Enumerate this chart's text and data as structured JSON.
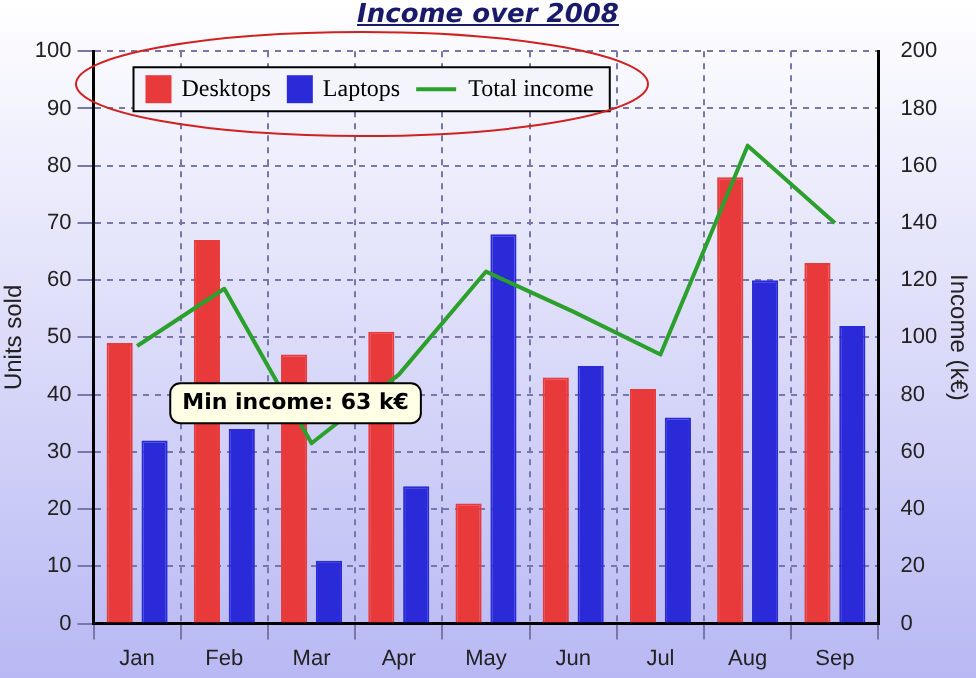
{
  "chart_data": {
    "type": "bar",
    "title": "Income over 2008",
    "ylabel": "Units sold",
    "y2label": "Income (k€)",
    "categories": [
      "Jan",
      "Feb",
      "Mar",
      "Apr",
      "May",
      "Jun",
      "Jul",
      "Aug",
      "Sep"
    ],
    "series": [
      {
        "name": "Desktops",
        "color": "#e83a3a",
        "values": [
          49,
          67,
          47,
          51,
          21,
          43,
          41,
          78,
          63
        ]
      },
      {
        "name": "Laptops",
        "color": "#2a2ad8",
        "values": [
          32,
          34,
          11,
          24,
          68,
          45,
          36,
          60,
          52
        ]
      },
      {
        "name": "Total income",
        "type": "line",
        "axis": "y2",
        "color": "#2ca02c",
        "values": [
          97,
          117,
          63,
          87,
          123,
          109,
          94,
          167,
          140
        ]
      }
    ],
    "ylim": [
      0,
      100
    ],
    "yticks": [
      0,
      10,
      20,
      30,
      40,
      50,
      60,
      70,
      80,
      90,
      100
    ],
    "y2lim": [
      0,
      200
    ],
    "y2ticks": [
      0,
      20,
      40,
      60,
      80,
      100,
      120,
      140,
      160,
      180,
      200
    ],
    "annotations": [
      "Min income: 63 k€"
    ],
    "grid": true,
    "legend": "top left",
    "marker": "none"
  }
}
